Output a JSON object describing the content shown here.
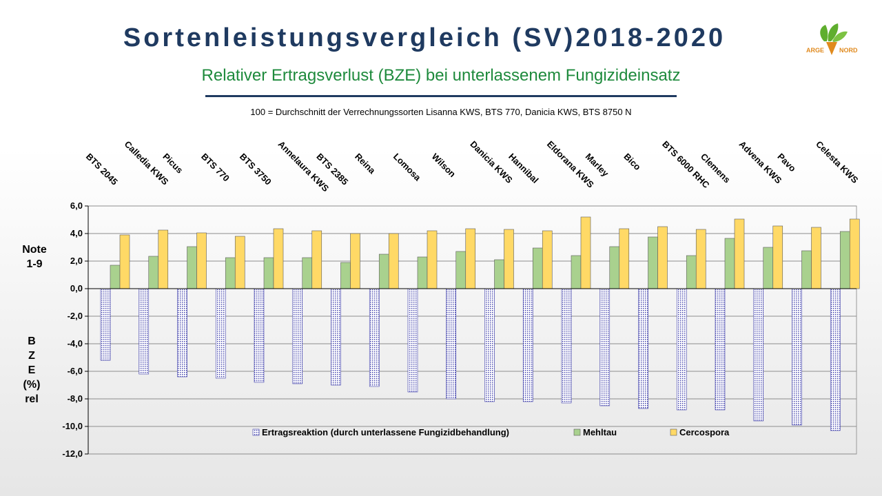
{
  "header": {
    "title": "Sortenleistungsvergleich (SV)2018-2020",
    "subtitle": "Relativer Ertragsverlust (BZE) bei unterlassenem Fungizideinsatz",
    "note": "100 = Durchschnitt der Verrechnungssorten Lisanna KWS, BTS 770, Danicia KWS, BTS 8750 N"
  },
  "logo": {
    "text_left": "ARGE",
    "text_right": "NORD",
    "colors": {
      "green": "#5fae2e",
      "orange": "#e08a1e"
    }
  },
  "labels": {
    "note_label": [
      "Note",
      "1-9"
    ],
    "bze_label": [
      "B",
      "Z",
      "E",
      "(%)",
      "rel"
    ]
  },
  "chart_data": {
    "type": "bar",
    "categories": [
      "BTS 2045",
      "Calledia KWS",
      "Picus",
      "BTS 770",
      "BTS 3750",
      "Annelaura KWS",
      "BTS 2385",
      "Reina",
      "Lomosa",
      "Wilson",
      "Danicia KWS",
      "Hannibal",
      "Eldorana KWS",
      "Marley",
      "Bico",
      "BTS 6000 RHC",
      "Clemens",
      "Advena KWS",
      "Pavo",
      "Celesta KWS"
    ],
    "series": [
      {
        "name": "Ertragsreaktion (durch unterlassene Fungizidbehandlung)",
        "color": "#3a3aa8",
        "pattern": "dotted",
        "values": [
          -5.2,
          -6.2,
          -6.4,
          -6.5,
          -6.8,
          -6.9,
          -7.0,
          -7.1,
          -7.5,
          -8.0,
          -8.2,
          -8.2,
          -8.3,
          -8.5,
          -8.7,
          -8.8,
          -8.8,
          -9.6,
          -9.9,
          -10.3
        ]
      },
      {
        "name": "Mehltau",
        "color": "#a9d18e",
        "values": [
          1.7,
          2.35,
          3.05,
          2.25,
          2.25,
          2.25,
          1.9,
          2.5,
          2.3,
          2.7,
          2.1,
          2.95,
          2.4,
          3.05,
          3.75,
          2.4,
          3.65,
          3.0,
          2.75,
          4.15
        ]
      },
      {
        "name": "Cercospora",
        "color": "#ffd966",
        "values": [
          3.9,
          4.25,
          4.05,
          3.8,
          4.35,
          4.2,
          4.0,
          4.0,
          4.2,
          4.35,
          4.3,
          4.2,
          5.2,
          4.35,
          4.5,
          4.3,
          5.05,
          4.55,
          4.45,
          5.05
        ]
      }
    ],
    "ylim": [
      -12,
      6
    ],
    "yticks": [
      "6,0",
      "4,0",
      "2,0",
      "0,0",
      "-2,0",
      "-4,0",
      "-6,0",
      "-8,0",
      "-10,0",
      "-12,0"
    ],
    "ytick_values": [
      6,
      4,
      2,
      0,
      -2,
      -4,
      -6,
      -8,
      -10,
      -12
    ],
    "grid": true,
    "legend_position": "bottom-inside"
  }
}
